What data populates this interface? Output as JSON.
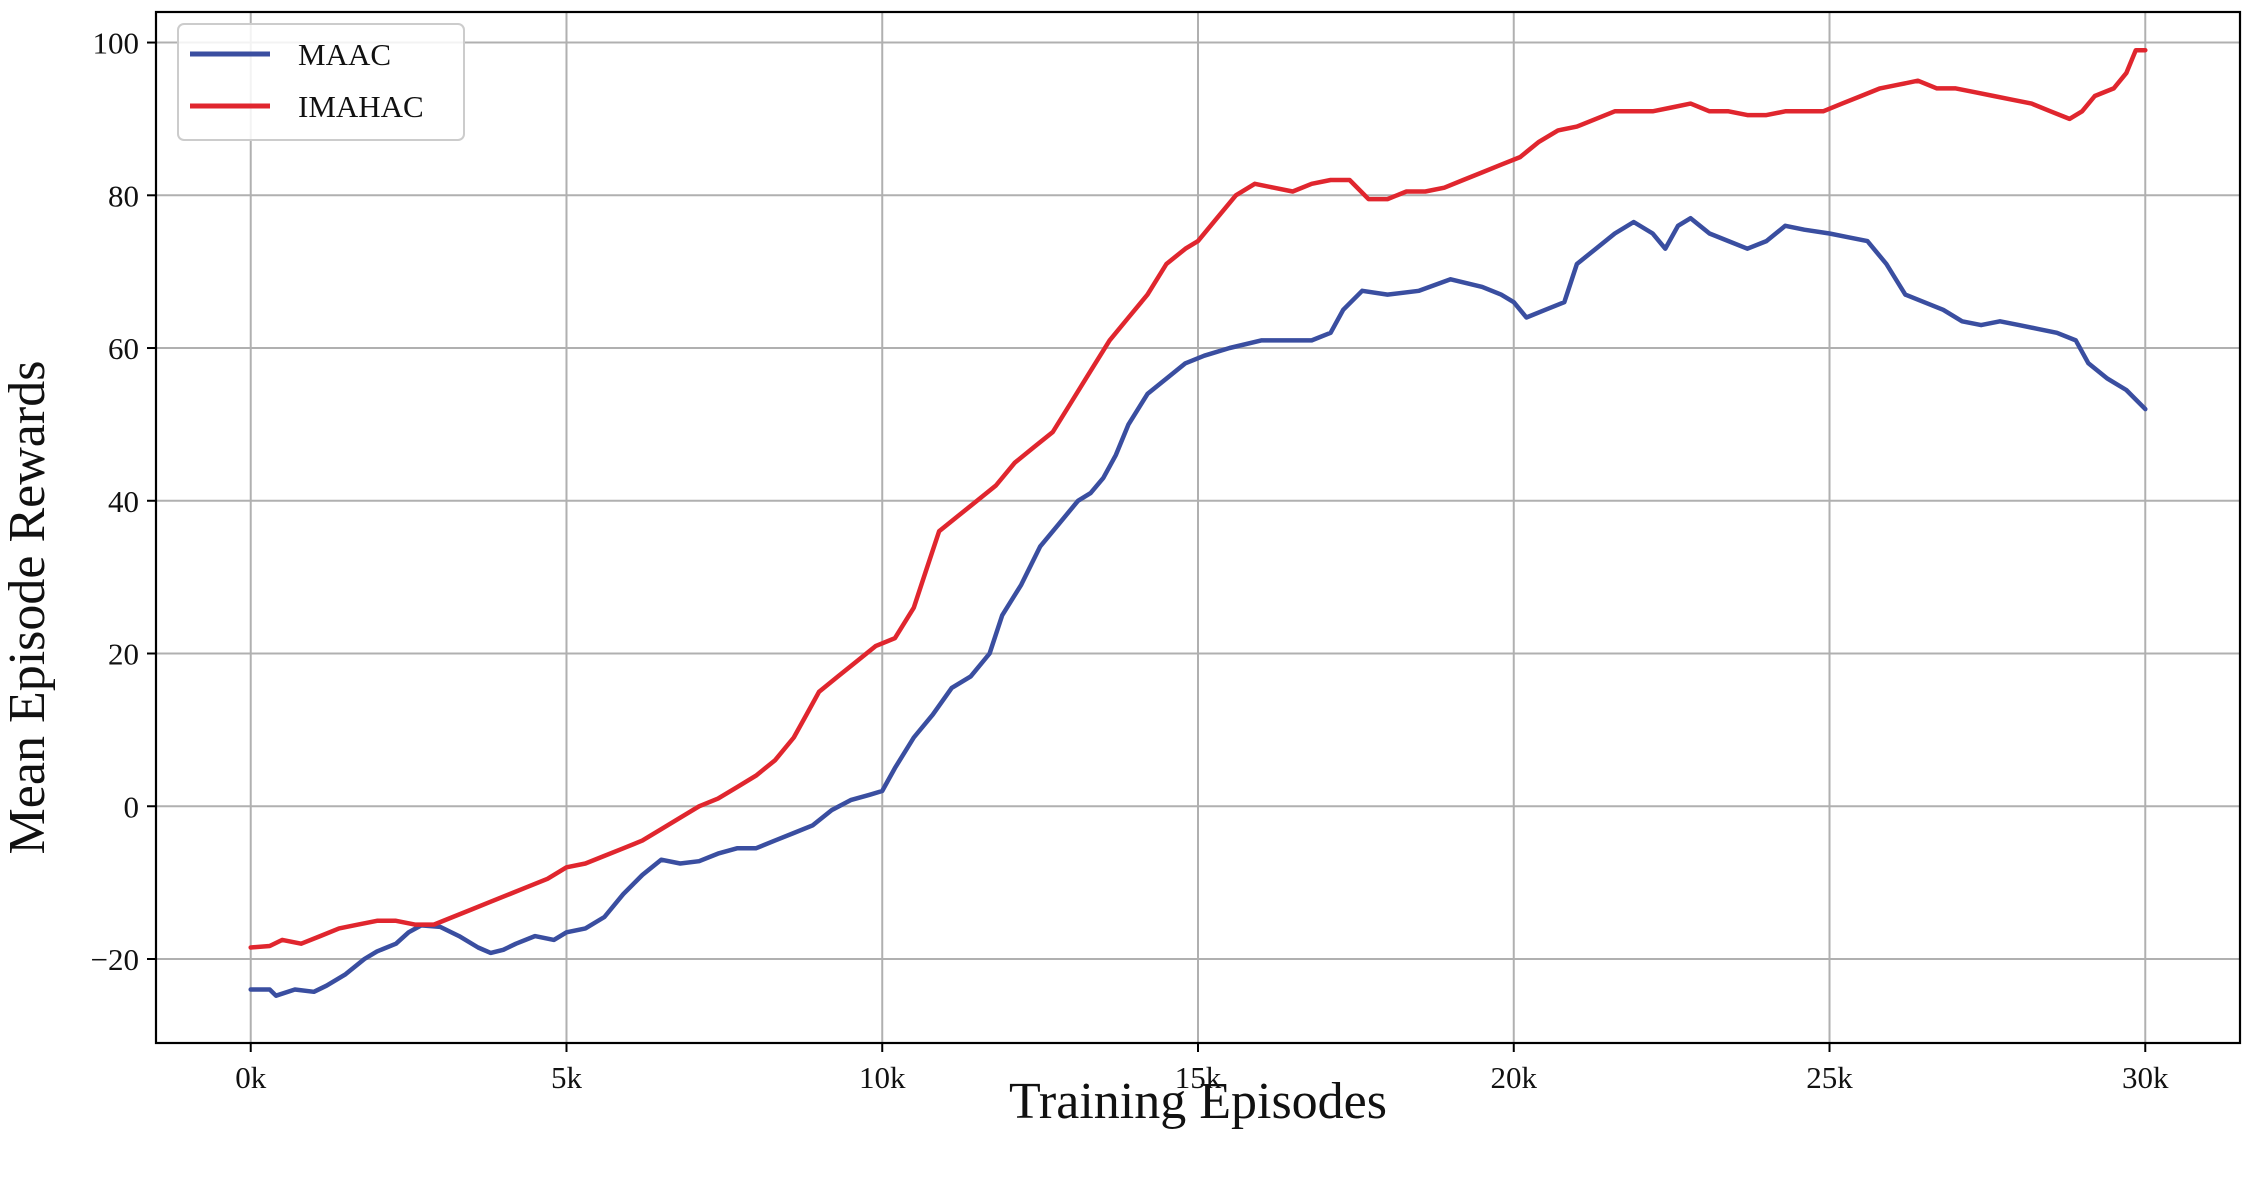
{
  "chart_data": {
    "type": "line",
    "title": "",
    "xlabel": "Training Episodes",
    "ylabel": "Mean Episode Rewards",
    "xlim": [
      -1500,
      31500
    ],
    "ylim": [
      -31,
      104
    ],
    "x_ticks": [
      0,
      5000,
      10000,
      15000,
      20000,
      25000,
      30000
    ],
    "x_tick_labels": [
      "0k",
      "5k",
      "10k",
      "15k",
      "20k",
      "25k",
      "30k"
    ],
    "y_ticks": [
      -20,
      0,
      20,
      40,
      60,
      80,
      100
    ],
    "y_tick_labels": [
      "−20",
      "0",
      "20",
      "40",
      "60",
      "80",
      "100"
    ],
    "grid": true,
    "legend_position": "top-left",
    "series": [
      {
        "name": "MAAC",
        "color": "#3a4ea0",
        "points": [
          [
            0,
            -24
          ],
          [
            300,
            -24
          ],
          [
            400,
            -24.8
          ],
          [
            700,
            -24
          ],
          [
            1000,
            -24.3
          ],
          [
            1200,
            -23.5
          ],
          [
            1500,
            -22
          ],
          [
            1800,
            -20
          ],
          [
            2000,
            -19
          ],
          [
            2300,
            -18
          ],
          [
            2500,
            -16.5
          ],
          [
            2700,
            -15.6
          ],
          [
            3000,
            -15.8
          ],
          [
            3300,
            -17
          ],
          [
            3600,
            -18.5
          ],
          [
            3800,
            -19.2
          ],
          [
            4000,
            -18.8
          ],
          [
            4200,
            -18
          ],
          [
            4500,
            -17
          ],
          [
            4800,
            -17.5
          ],
          [
            5000,
            -16.5
          ],
          [
            5300,
            -16
          ],
          [
            5600,
            -14.5
          ],
          [
            5900,
            -11.5
          ],
          [
            6200,
            -9
          ],
          [
            6500,
            -7
          ],
          [
            6800,
            -7.5
          ],
          [
            7100,
            -7.2
          ],
          [
            7400,
            -6.2
          ],
          [
            7700,
            -5.5
          ],
          [
            8000,
            -5.5
          ],
          [
            8300,
            -4.5
          ],
          [
            8600,
            -3.5
          ],
          [
            8900,
            -2.5
          ],
          [
            9200,
            -0.5
          ],
          [
            9500,
            0.8
          ],
          [
            9800,
            1.5
          ],
          [
            10000,
            2
          ],
          [
            10200,
            5
          ],
          [
            10500,
            9
          ],
          [
            10800,
            12
          ],
          [
            11100,
            15.5
          ],
          [
            11400,
            17
          ],
          [
            11700,
            20
          ],
          [
            11900,
            25
          ],
          [
            12200,
            29
          ],
          [
            12500,
            34
          ],
          [
            12800,
            37
          ],
          [
            13100,
            40
          ],
          [
            13300,
            41
          ],
          [
            13500,
            43
          ],
          [
            13700,
            46
          ],
          [
            13900,
            50
          ],
          [
            14200,
            54
          ],
          [
            14500,
            56
          ],
          [
            14800,
            58
          ],
          [
            15100,
            59
          ],
          [
            15500,
            60
          ],
          [
            16000,
            61
          ],
          [
            16500,
            61
          ],
          [
            16800,
            61
          ],
          [
            17100,
            62
          ],
          [
            17300,
            65
          ],
          [
            17600,
            67.5
          ],
          [
            18000,
            67
          ],
          [
            18500,
            67.5
          ],
          [
            19000,
            69
          ],
          [
            19500,
            68
          ],
          [
            19800,
            67
          ],
          [
            20000,
            66
          ],
          [
            20200,
            64
          ],
          [
            20500,
            65
          ],
          [
            20800,
            66
          ],
          [
            21000,
            71
          ],
          [
            21300,
            73
          ],
          [
            21600,
            75
          ],
          [
            21900,
            76.5
          ],
          [
            22200,
            75
          ],
          [
            22400,
            73
          ],
          [
            22600,
            76
          ],
          [
            22800,
            77
          ],
          [
            23100,
            75
          ],
          [
            23400,
            74
          ],
          [
            23700,
            73
          ],
          [
            24000,
            74
          ],
          [
            24300,
            76
          ],
          [
            24600,
            75.5
          ],
          [
            25000,
            75
          ],
          [
            25300,
            74.5
          ],
          [
            25600,
            74
          ],
          [
            25900,
            71
          ],
          [
            26200,
            67
          ],
          [
            26500,
            66
          ],
          [
            26800,
            65
          ],
          [
            27100,
            63.5
          ],
          [
            27400,
            63
          ],
          [
            27700,
            63.5
          ],
          [
            28000,
            63
          ],
          [
            28300,
            62.5
          ],
          [
            28600,
            62
          ],
          [
            28900,
            61
          ],
          [
            29100,
            58
          ],
          [
            29400,
            56
          ],
          [
            29700,
            54.5
          ],
          [
            30000,
            52
          ]
        ]
      },
      {
        "name": "IMAHAC",
        "color": "#e0262e",
        "points": [
          [
            0,
            -18.5
          ],
          [
            300,
            -18.3
          ],
          [
            500,
            -17.5
          ],
          [
            800,
            -18
          ],
          [
            1100,
            -17
          ],
          [
            1400,
            -16
          ],
          [
            1700,
            -15.5
          ],
          [
            2000,
            -15
          ],
          [
            2300,
            -15
          ],
          [
            2600,
            -15.5
          ],
          [
            2900,
            -15.5
          ],
          [
            3200,
            -14.5
          ],
          [
            3500,
            -13.5
          ],
          [
            3800,
            -12.5
          ],
          [
            4100,
            -11.5
          ],
          [
            4400,
            -10.5
          ],
          [
            4700,
            -9.5
          ],
          [
            5000,
            -8
          ],
          [
            5300,
            -7.5
          ],
          [
            5600,
            -6.5
          ],
          [
            5900,
            -5.5
          ],
          [
            6200,
            -4.5
          ],
          [
            6500,
            -3
          ],
          [
            6800,
            -1.5
          ],
          [
            7100,
            0
          ],
          [
            7400,
            1
          ],
          [
            7700,
            2.5
          ],
          [
            8000,
            4
          ],
          [
            8300,
            6
          ],
          [
            8600,
            9
          ],
          [
            8800,
            12
          ],
          [
            9000,
            15
          ],
          [
            9300,
            17
          ],
          [
            9600,
            19
          ],
          [
            9900,
            21
          ],
          [
            10200,
            22
          ],
          [
            10500,
            26
          ],
          [
            10700,
            31
          ],
          [
            10900,
            36
          ],
          [
            11200,
            38
          ],
          [
            11500,
            40
          ],
          [
            11800,
            42
          ],
          [
            12100,
            45
          ],
          [
            12400,
            47
          ],
          [
            12700,
            49
          ],
          [
            13000,
            53
          ],
          [
            13300,
            57
          ],
          [
            13600,
            61
          ],
          [
            13900,
            64
          ],
          [
            14200,
            67
          ],
          [
            14500,
            71
          ],
          [
            14800,
            73
          ],
          [
            15000,
            74
          ],
          [
            15300,
            77
          ],
          [
            15600,
            80
          ],
          [
            15900,
            81.5
          ],
          [
            16200,
            81
          ],
          [
            16500,
            80.5
          ],
          [
            16800,
            81.5
          ],
          [
            17100,
            82
          ],
          [
            17400,
            82
          ],
          [
            17700,
            79.5
          ],
          [
            18000,
            79.5
          ],
          [
            18300,
            80.5
          ],
          [
            18600,
            80.5
          ],
          [
            18900,
            81
          ],
          [
            19200,
            82
          ],
          [
            19500,
            83
          ],
          [
            19800,
            84
          ],
          [
            20100,
            85
          ],
          [
            20400,
            87
          ],
          [
            20700,
            88.5
          ],
          [
            21000,
            89
          ],
          [
            21300,
            90
          ],
          [
            21600,
            91
          ],
          [
            21900,
            91
          ],
          [
            22200,
            91
          ],
          [
            22500,
            91.5
          ],
          [
            22800,
            92
          ],
          [
            23100,
            91
          ],
          [
            23400,
            91
          ],
          [
            23700,
            90.5
          ],
          [
            24000,
            90.5
          ],
          [
            24300,
            91
          ],
          [
            24600,
            91
          ],
          [
            24900,
            91
          ],
          [
            25200,
            92
          ],
          [
            25500,
            93
          ],
          [
            25800,
            94
          ],
          [
            26100,
            94.5
          ],
          [
            26400,
            95
          ],
          [
            26700,
            94
          ],
          [
            27000,
            94
          ],
          [
            27300,
            93.5
          ],
          [
            27600,
            93
          ],
          [
            27900,
            92.5
          ],
          [
            28200,
            92
          ],
          [
            28500,
            91
          ],
          [
            28800,
            90
          ],
          [
            29000,
            91
          ],
          [
            29200,
            93
          ],
          [
            29500,
            94
          ],
          [
            29700,
            96
          ],
          [
            29850,
            99
          ],
          [
            30000,
            99
          ]
        ]
      }
    ]
  }
}
